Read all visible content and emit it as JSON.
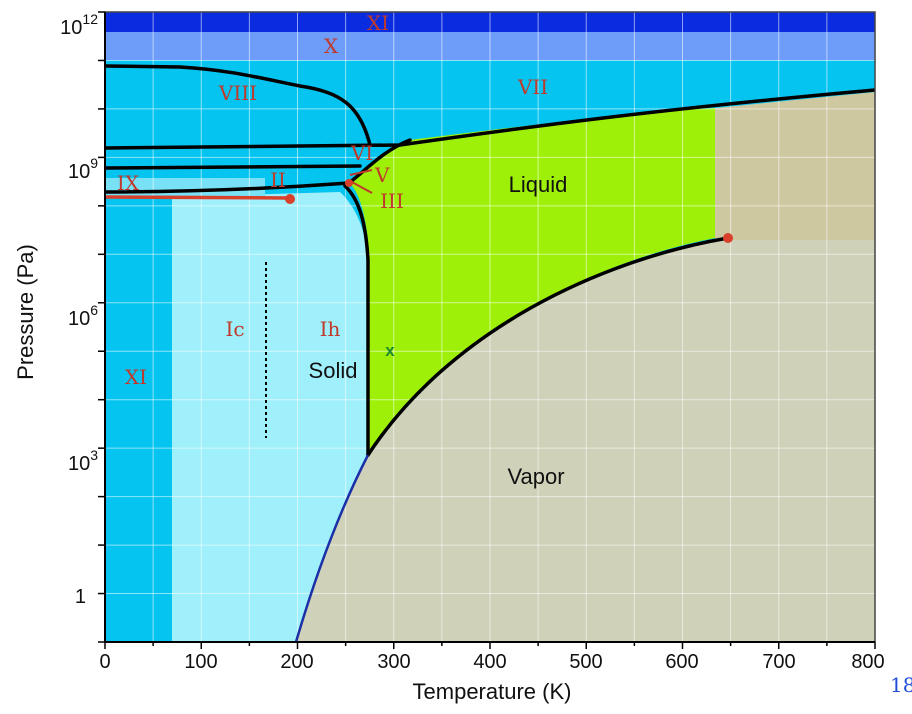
{
  "axes": {
    "x_label": "Temperature (K)",
    "y_label": "Pressure (Pa)",
    "x_ticks": [
      "0",
      "100",
      "200",
      "300",
      "400",
      "500",
      "600",
      "700",
      "800"
    ],
    "y_ticks": {
      "p1e12": {
        "base": "10",
        "exp": "12"
      },
      "p1e9": {
        "base": "10",
        "exp": "9"
      },
      "p1e6": {
        "base": "10",
        "exp": "6"
      },
      "p1e3": {
        "base": "10",
        "exp": "3"
      },
      "p1": {
        "base": "1",
        "exp": ""
      }
    }
  },
  "phases": {
    "xi_top": "XI",
    "x": "X",
    "viii": "VIII",
    "vii": "VII",
    "vi": "VI",
    "v": "V",
    "ix": "IX",
    "ii": "II",
    "iii": "III",
    "ic": "Ic",
    "ih": "Ih",
    "xi_left": "XI",
    "solid": "Solid",
    "liquid": "Liquid",
    "vapor": "Vapor",
    "marker": "x"
  },
  "page_number_fragment": "18",
  "colors": {
    "xi_dark_blue": "#0a2ce0",
    "x_blue": "#6d9cf9",
    "high_pressure_cyan": "#05c4ef",
    "ice_ih_light_cyan": "#9ff0fa",
    "liquid_green": "#9ef009",
    "vapor_beige": "#cfd1b8",
    "supercritical_tan": "#cdc8a0",
    "point_red": "#d9402b",
    "label_red": "#c0392b"
  }
}
